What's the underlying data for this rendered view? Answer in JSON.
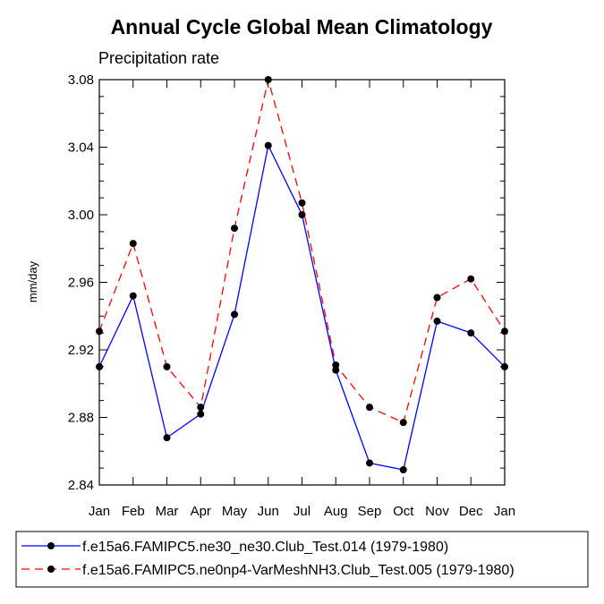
{
  "chart_data": {
    "type": "line",
    "title": "Annual Cycle Global Mean Climatology",
    "subtitle": "Precipitation rate",
    "xlabel": "",
    "ylabel": "mm/day",
    "ylim": [
      2.84,
      3.08
    ],
    "yticks": [
      "2.84",
      "2.88",
      "2.92",
      "2.96",
      "3.00",
      "3.04",
      "3.08"
    ],
    "categories": [
      "Jan",
      "Feb",
      "Mar",
      "Apr",
      "May",
      "Jun",
      "Jul",
      "Aug",
      "Sep",
      "Oct",
      "Nov",
      "Dec",
      "Jan"
    ],
    "grid": false,
    "legend_position": "bottom",
    "series": [
      {
        "name": "f.e15a6.FAMIPC5.ne30_ne30.Club_Test.014 (1979-1980)",
        "color": "#0000ff",
        "dash": "solid",
        "marker": "circle",
        "values": [
          2.91,
          2.952,
          2.868,
          2.882,
          2.941,
          3.041,
          3.0,
          2.908,
          2.853,
          2.849,
          2.937,
          2.93,
          2.91
        ]
      },
      {
        "name": "f.e15a6.FAMIPC5.ne0np4-VarMeshNH3.Club_Test.005 (1979-1980)",
        "color": "#ff0000",
        "dash": "dashed",
        "marker": "circle",
        "values": [
          2.931,
          2.983,
          2.91,
          2.886,
          2.992,
          3.08,
          3.007,
          2.911,
          2.886,
          2.877,
          2.951,
          2.962,
          2.931
        ]
      }
    ]
  }
}
